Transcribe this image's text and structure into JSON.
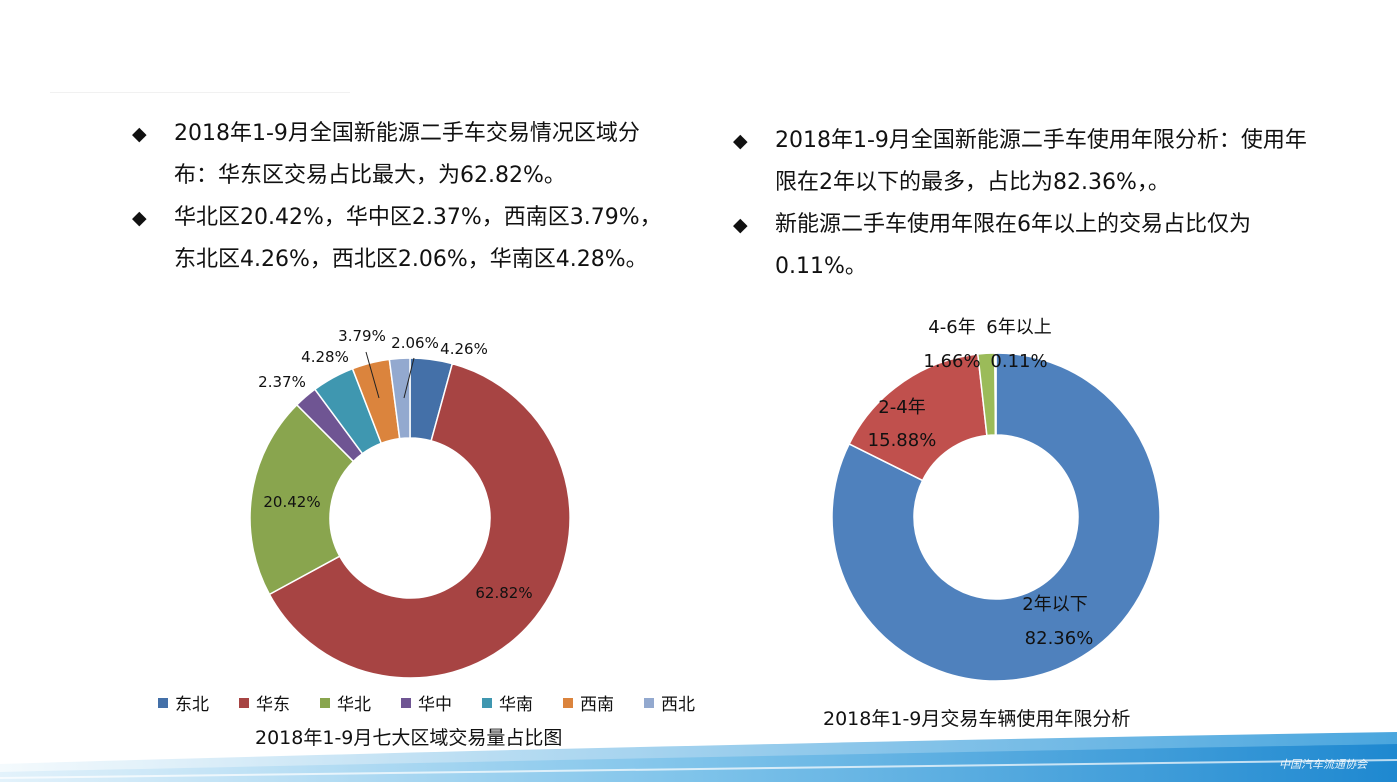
{
  "left_text": {
    "bullets": [
      {
        "marker": "◆",
        "text": "2018年1-9月全国新能源二手车交易情况区域分布：华东区交易占比最大，为62.82%。"
      },
      {
        "marker": "◆",
        "text": "华北区20.42%，华中区2.37%，西南区3.79%，东北区4.26%，西北区2.06%，华南区4.28%。"
      }
    ]
  },
  "right_text": {
    "bullets": [
      {
        "marker": "◆",
        "text": "2018年1-9月全国新能源二手车使用年限分析：使用年限在2年以下的最多，占比为82.36%，。"
      },
      {
        "marker": "◆",
        "text": "新能源二手车使用年限在6年以上的交易占比仅为0.11%。"
      }
    ]
  },
  "chart_data": [
    {
      "type": "pie",
      "donut": true,
      "title": "2018年1-9月七大区域交易量占比图",
      "legend_position": "bottom",
      "labels": [
        "东北",
        "华东",
        "华北",
        "华中",
        "华南",
        "西南",
        "西北"
      ],
      "values": [
        4.26,
        62.82,
        20.42,
        2.37,
        4.28,
        3.79,
        2.06
      ],
      "data_labels": [
        "4.26%",
        "62.82%",
        "20.42%",
        "2.37%",
        "4.28%",
        "3.79%",
        "2.06%"
      ],
      "colors": [
        "#4470a8",
        "#a74443",
        "#89a54e",
        "#6f5593",
        "#3f97b0",
        "#db843d",
        "#93a9cf"
      ]
    },
    {
      "type": "pie",
      "donut": true,
      "title": "2018年1-9月交易车辆使用年限分析",
      "labels": [
        "2年以下",
        "2-4年",
        "4-6年",
        "6年以上"
      ],
      "values": [
        82.36,
        15.88,
        1.66,
        0.11
      ],
      "data_labels": [
        "82.36%",
        "15.88%",
        "1.66%",
        "0.11%"
      ],
      "colors": [
        "#4f81bd",
        "#c0504d",
        "#9bbb59",
        "#8064a2"
      ]
    }
  ],
  "logo_text": "中国汽车流通协会"
}
